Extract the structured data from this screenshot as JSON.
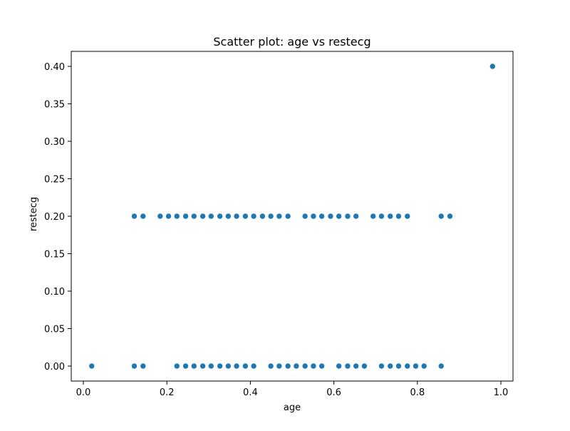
{
  "chart_data": {
    "type": "scatter",
    "title": "Scatter plot: age vs restecg",
    "xlabel": "age",
    "ylabel": "restecg",
    "xlim": [
      -0.029,
      1.029
    ],
    "ylim": [
      -0.02,
      0.42
    ],
    "xticks": [
      {
        "value": 0.0,
        "label": "0.0"
      },
      {
        "value": 0.2,
        "label": "0.2"
      },
      {
        "value": 0.4,
        "label": "0.4"
      },
      {
        "value": 0.6,
        "label": "0.6"
      },
      {
        "value": 0.8,
        "label": "0.8"
      },
      {
        "value": 1.0,
        "label": "1.0"
      }
    ],
    "yticks": [
      {
        "value": 0.0,
        "label": "0.00"
      },
      {
        "value": 0.05,
        "label": "0.05"
      },
      {
        "value": 0.1,
        "label": "0.10"
      },
      {
        "value": 0.15,
        "label": "0.15"
      },
      {
        "value": 0.2,
        "label": "0.20"
      },
      {
        "value": 0.25,
        "label": "0.25"
      },
      {
        "value": 0.3,
        "label": "0.30"
      },
      {
        "value": 0.35,
        "label": "0.35"
      },
      {
        "value": 0.4,
        "label": "0.40"
      }
    ],
    "grid": false,
    "legend": "none",
    "marker_color": "#1f77b4",
    "points": [
      {
        "x": 0.02,
        "y": 0.0
      },
      {
        "x": 0.122,
        "y": 0.0
      },
      {
        "x": 0.143,
        "y": 0.0
      },
      {
        "x": 0.224,
        "y": 0.0
      },
      {
        "x": 0.245,
        "y": 0.0
      },
      {
        "x": 0.265,
        "y": 0.0
      },
      {
        "x": 0.286,
        "y": 0.0
      },
      {
        "x": 0.306,
        "y": 0.0
      },
      {
        "x": 0.327,
        "y": 0.0
      },
      {
        "x": 0.347,
        "y": 0.0
      },
      {
        "x": 0.367,
        "y": 0.0
      },
      {
        "x": 0.388,
        "y": 0.0
      },
      {
        "x": 0.408,
        "y": 0.0
      },
      {
        "x": 0.449,
        "y": 0.0
      },
      {
        "x": 0.469,
        "y": 0.0
      },
      {
        "x": 0.49,
        "y": 0.0
      },
      {
        "x": 0.51,
        "y": 0.0
      },
      {
        "x": 0.531,
        "y": 0.0
      },
      {
        "x": 0.551,
        "y": 0.0
      },
      {
        "x": 0.571,
        "y": 0.0
      },
      {
        "x": 0.612,
        "y": 0.0
      },
      {
        "x": 0.633,
        "y": 0.0
      },
      {
        "x": 0.653,
        "y": 0.0
      },
      {
        "x": 0.673,
        "y": 0.0
      },
      {
        "x": 0.714,
        "y": 0.0
      },
      {
        "x": 0.735,
        "y": 0.0
      },
      {
        "x": 0.755,
        "y": 0.0
      },
      {
        "x": 0.776,
        "y": 0.0
      },
      {
        "x": 0.796,
        "y": 0.0
      },
      {
        "x": 0.816,
        "y": 0.0
      },
      {
        "x": 0.857,
        "y": 0.0
      },
      {
        "x": 0.122,
        "y": 0.2
      },
      {
        "x": 0.143,
        "y": 0.2
      },
      {
        "x": 0.184,
        "y": 0.2
      },
      {
        "x": 0.204,
        "y": 0.2
      },
      {
        "x": 0.224,
        "y": 0.2
      },
      {
        "x": 0.245,
        "y": 0.2
      },
      {
        "x": 0.265,
        "y": 0.2
      },
      {
        "x": 0.286,
        "y": 0.2
      },
      {
        "x": 0.306,
        "y": 0.2
      },
      {
        "x": 0.327,
        "y": 0.2
      },
      {
        "x": 0.347,
        "y": 0.2
      },
      {
        "x": 0.367,
        "y": 0.2
      },
      {
        "x": 0.388,
        "y": 0.2
      },
      {
        "x": 0.408,
        "y": 0.2
      },
      {
        "x": 0.429,
        "y": 0.2
      },
      {
        "x": 0.449,
        "y": 0.2
      },
      {
        "x": 0.469,
        "y": 0.2
      },
      {
        "x": 0.49,
        "y": 0.2
      },
      {
        "x": 0.531,
        "y": 0.2
      },
      {
        "x": 0.551,
        "y": 0.2
      },
      {
        "x": 0.571,
        "y": 0.2
      },
      {
        "x": 0.592,
        "y": 0.2
      },
      {
        "x": 0.612,
        "y": 0.2
      },
      {
        "x": 0.633,
        "y": 0.2
      },
      {
        "x": 0.653,
        "y": 0.2
      },
      {
        "x": 0.694,
        "y": 0.2
      },
      {
        "x": 0.714,
        "y": 0.2
      },
      {
        "x": 0.735,
        "y": 0.2
      },
      {
        "x": 0.755,
        "y": 0.2
      },
      {
        "x": 0.776,
        "y": 0.2
      },
      {
        "x": 0.857,
        "y": 0.2
      },
      {
        "x": 0.878,
        "y": 0.2
      },
      {
        "x": 0.98,
        "y": 0.4
      }
    ]
  }
}
